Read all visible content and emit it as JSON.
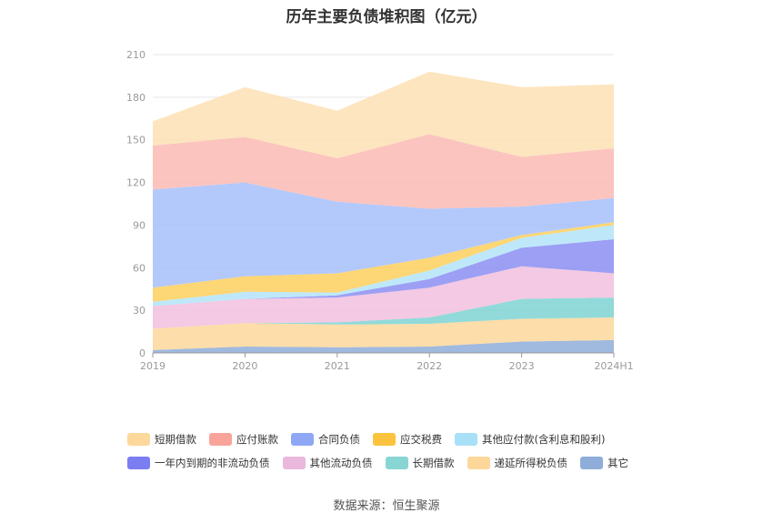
{
  "title": "历年主要负债堆积图（亿元）",
  "source": "数据来源：恒生聚源",
  "chart_data": {
    "type": "area",
    "stacked": true,
    "x": [
      "2019",
      "2020",
      "2021",
      "2022",
      "2023",
      "2024H1"
    ],
    "ylim": [
      0,
      210
    ],
    "yticks": [
      0,
      30,
      60,
      90,
      120,
      150,
      180,
      210
    ],
    "grid": true,
    "legend_position": "bottom",
    "series": [
      {
        "name": "其它",
        "color": "#8fadd9",
        "values": [
          2,
          4.5,
          4,
          4.5,
          8,
          9
        ]
      },
      {
        "name": "递延所得税负债",
        "color": "#fdd79a",
        "values": [
          15,
          16.5,
          16,
          16,
          16,
          16
        ]
      },
      {
        "name": "长期借款",
        "color": "#7fd3d3",
        "values": [
          0,
          0,
          1.5,
          4.5,
          14,
          14
        ]
      },
      {
        "name": "其他流动负债",
        "color": "#f1c0de",
        "values": [
          16,
          17,
          17.5,
          21,
          23,
          17
        ]
      },
      {
        "name": "一年内到期的非流动负债",
        "color": "#8b8ef2",
        "values": [
          0,
          0,
          1.5,
          6,
          13,
          24
        ]
      },
      {
        "name": "其他应付款(含利息和股利)",
        "color": "#b3e4f8",
        "values": [
          3,
          5,
          2,
          6,
          7,
          10
        ]
      },
      {
        "name": "应交税费",
        "color": "#fdcf5d",
        "values": [
          10,
          11,
          13.5,
          9,
          2,
          2
        ]
      },
      {
        "name": "合同负债",
        "color": "#a6bffb",
        "values": [
          69,
          66,
          50.5,
          34.5,
          20,
          17
        ]
      },
      {
        "name": "应付账款",
        "color": "#fbbab3",
        "values": [
          31,
          32,
          30.5,
          52.5,
          35,
          35
        ]
      },
      {
        "name": "短期借款",
        "color": "#fde1b4",
        "values": [
          17,
          35,
          33.5,
          44,
          49,
          45
        ]
      }
    ]
  },
  "legend": {
    "row1": [
      {
        "label": "短期借款",
        "color": "#fdd89c"
      },
      {
        "label": "应付账款",
        "color": "#f9a49a"
      },
      {
        "label": "合同负债",
        "color": "#8ea8f5"
      },
      {
        "label": "应交税费",
        "color": "#fcc33f"
      },
      {
        "label": "其他应付款(含利息和股利)",
        "color": "#a8e0f7"
      }
    ],
    "row2": [
      {
        "label": "一年内到期的非流动负债",
        "color": "#7b7ef0"
      },
      {
        "label": "其他流动负债",
        "color": "#e9b8dc"
      },
      {
        "label": "长期借款",
        "color": "#87d6d4"
      },
      {
        "label": "递延所得税负债",
        "color": "#fdd79a"
      },
      {
        "label": "其它",
        "color": "#8fadd9"
      }
    ]
  }
}
